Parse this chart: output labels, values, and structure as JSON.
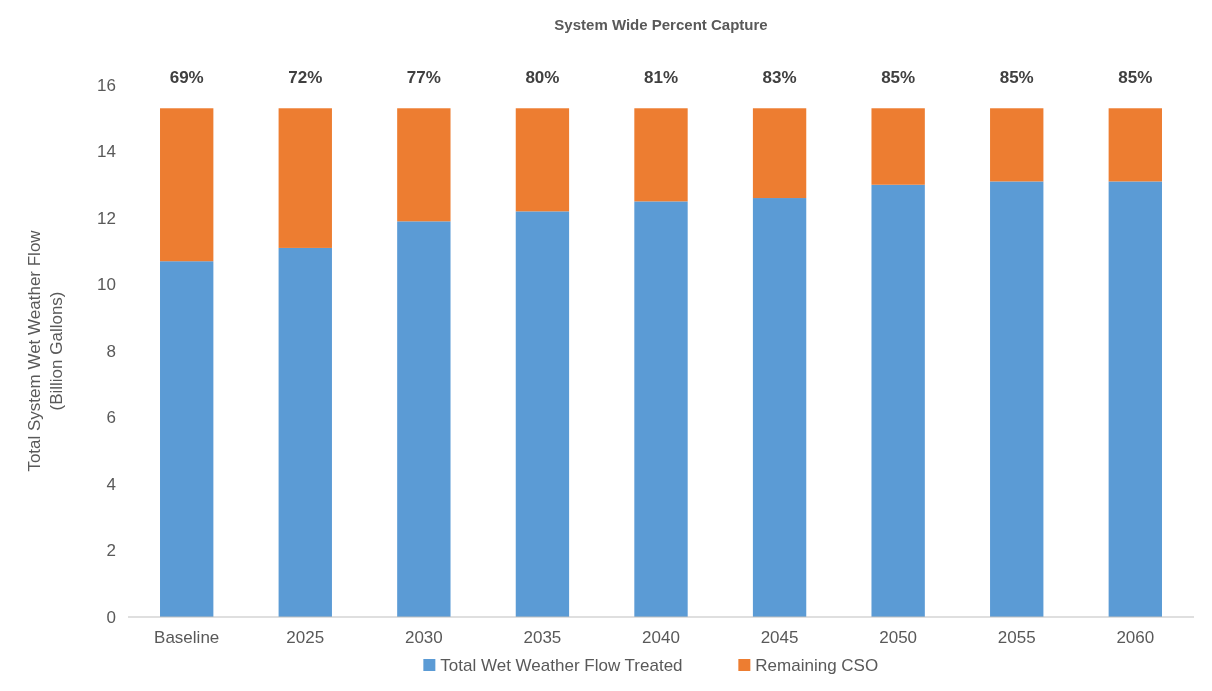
{
  "chart_data": {
    "type": "bar",
    "title": "System Wide Percent Capture",
    "ylabel": "Total System Wet Weather Flow\n(Billion Gallons)",
    "categories": [
      "Baseline",
      "2025",
      "2030",
      "2035",
      "2040",
      "2045",
      "2050",
      "2055",
      "2060"
    ],
    "stacked": true,
    "series": [
      {
        "name": "Total Wet Weather Flow Treated",
        "color": "#5b9bd5",
        "values": [
          10.7,
          11.1,
          11.9,
          12.2,
          12.5,
          12.6,
          13.0,
          13.1,
          13.1
        ]
      },
      {
        "name": "Remaining CSO",
        "color": "#ed7d31",
        "values": [
          4.6,
          4.2,
          3.4,
          3.1,
          2.8,
          2.7,
          2.3,
          2.2,
          2.2
        ]
      }
    ],
    "ylim": [
      0,
      16
    ],
    "yticks": [
      0,
      2,
      4,
      6,
      8,
      10,
      12,
      14,
      16
    ],
    "grid": false,
    "legend": "bottom",
    "annotations": [
      "69%",
      "72%",
      "77%",
      "80%",
      "81%",
      "83%",
      "85%",
      "85%",
      "85%"
    ]
  }
}
